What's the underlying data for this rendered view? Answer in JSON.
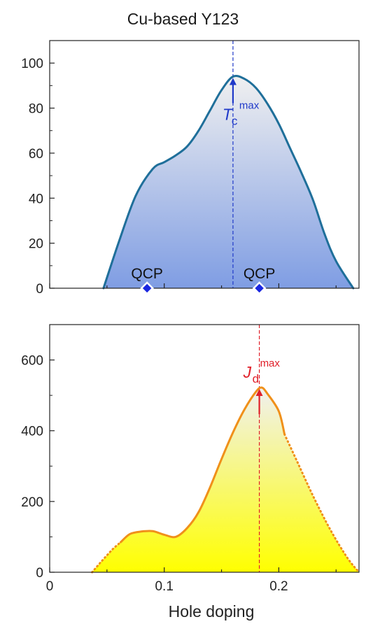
{
  "title": "Cu-based Y123",
  "colors": {
    "tc_curve": "#1f6f9a",
    "tc_fill_top": "#f0f0f0",
    "tc_fill_bottom": "#7f9de3",
    "tc_marker": "#1f39c9",
    "qcp_marker": "#1a27e0",
    "jd_curve": "#f0901a",
    "jd_fill_top": "#f0f0f0",
    "jd_fill_bottom": "#ffff00",
    "jd_marker": "#e0202a"
  },
  "chart_data": [
    {
      "type": "area",
      "panel": "top",
      "xlim": [
        0,
        0.27
      ],
      "ylim": [
        0,
        110
      ],
      "yticks": [
        0,
        20,
        40,
        60,
        80,
        100
      ],
      "ytick_labels": [
        "0",
        "20",
        "40",
        "60",
        "80",
        "100"
      ],
      "xlabel": "",
      "ylabel": "",
      "series": [
        {
          "name": "",
          "x": [
            0.047,
            0.06,
            0.075,
            0.09,
            0.1,
            0.11,
            0.12,
            0.13,
            0.14,
            0.15,
            0.16,
            0.17,
            0.18,
            0.19,
            0.2,
            0.21,
            0.22,
            0.23,
            0.24,
            0.25,
            0.265
          ],
          "y": [
            0,
            20,
            41,
            53,
            56,
            59,
            63,
            70,
            79,
            88,
            94,
            93,
            89,
            82,
            73,
            62,
            51,
            39,
            24,
            12,
            0
          ]
        }
      ],
      "vline": {
        "x": 0.16
      },
      "annotations": {
        "max_label": "T",
        "max_sub": "c",
        "max_sup": "max",
        "max_x": 0.16,
        "max_y": 94,
        "qcp_label": "QCP",
        "qcp_points": [
          {
            "x": 0.085,
            "y": 0
          },
          {
            "x": 0.183,
            "y": 0
          }
        ]
      }
    },
    {
      "type": "area",
      "panel": "bottom",
      "xlim": [
        0,
        0.27
      ],
      "ylim": [
        0,
        700
      ],
      "xticks": [
        0,
        0.1,
        0.2
      ],
      "xtick_labels": [
        "0",
        "0.1",
        "0.2"
      ],
      "yticks": [
        0,
        200,
        400,
        600
      ],
      "ytick_labels": [
        "0",
        "200",
        "400",
        "600"
      ],
      "xlabel": "Hole doping",
      "ylabel": "",
      "series": [
        {
          "name": "",
          "style": "dotted",
          "x": [
            0.037,
            0.045,
            0.055,
            0.062
          ],
          "y": [
            0,
            30,
            65,
            85
          ]
        },
        {
          "name": "",
          "style": "solid",
          "x": [
            0.062,
            0.07,
            0.08,
            0.09,
            0.1,
            0.11,
            0.12,
            0.13,
            0.14,
            0.15,
            0.16,
            0.17,
            0.18,
            0.185,
            0.19,
            0.2,
            0.205
          ],
          "y": [
            85,
            108,
            115,
            116,
            106,
            100,
            125,
            170,
            240,
            320,
            395,
            460,
            510,
            522,
            505,
            455,
            390
          ]
        },
        {
          "name": "",
          "style": "dotted",
          "x": [
            0.205,
            0.215,
            0.23,
            0.245,
            0.26,
            0.27
          ],
          "y": [
            390,
            320,
            215,
            120,
            40,
            0
          ]
        }
      ],
      "vline": {
        "x": 0.183
      },
      "annotations": {
        "max_label": "J",
        "max_sub": "d",
        "max_sup": "max",
        "max_x": 0.183,
        "max_y": 522
      }
    }
  ]
}
